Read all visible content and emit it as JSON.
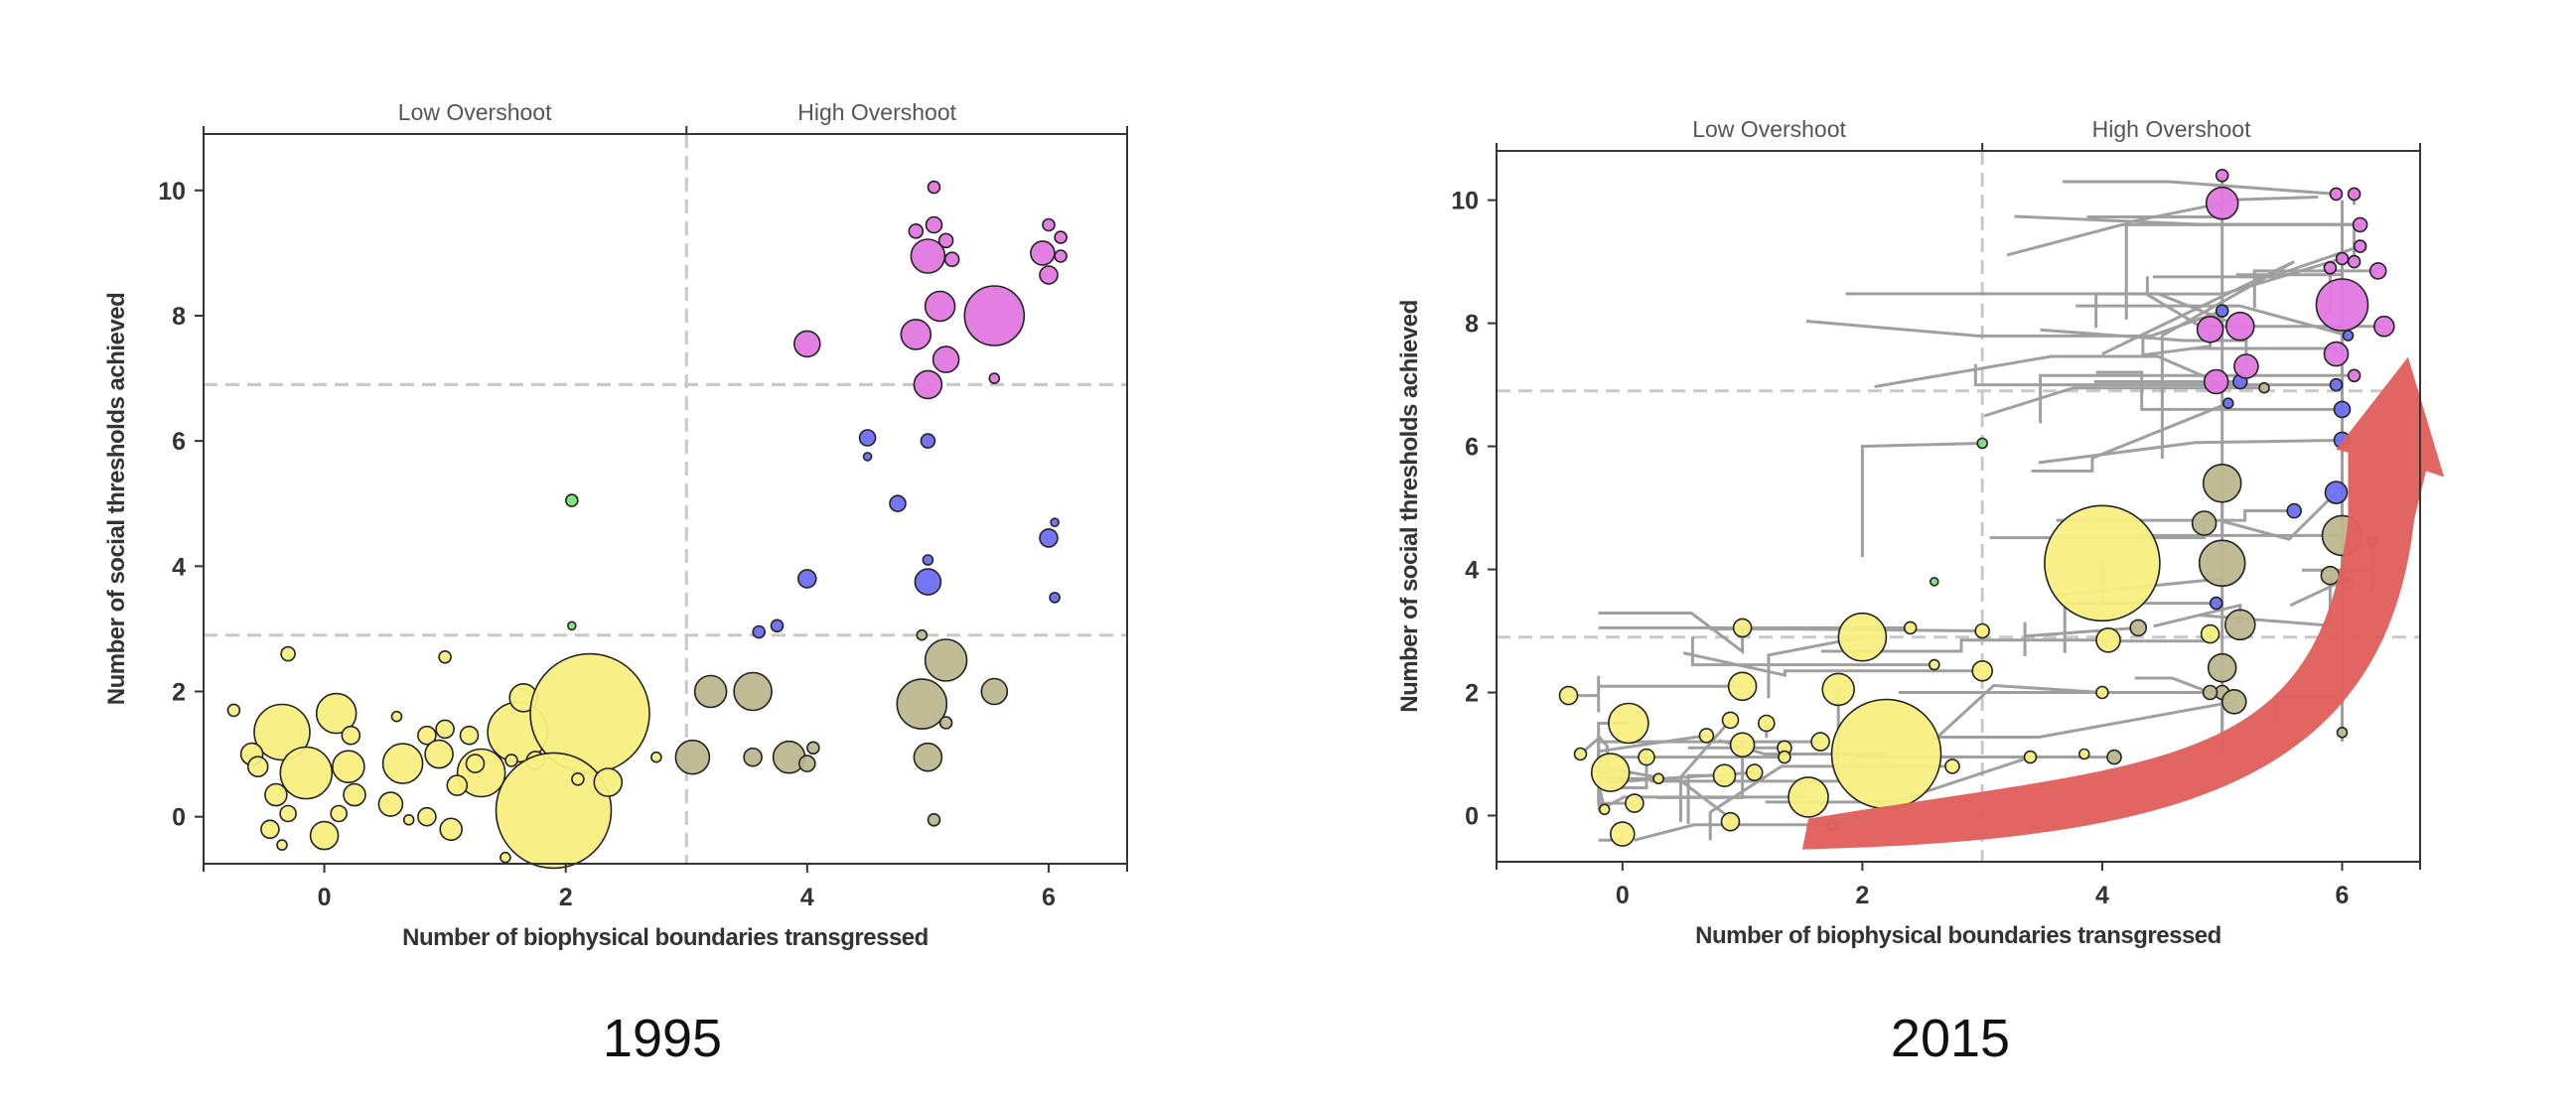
{
  "chart_data": [
    {
      "type": "scatter",
      "year_label": "1995",
      "xlabel": "Number of biophysical boundaries transgressed",
      "ylabel": "Number of social thresholds achieved",
      "region_labels": [
        "Low Overshoot",
        "High Overshoot"
      ],
      "xlim": [
        -1,
        6.65
      ],
      "ylim": [
        -0.75,
        10.9
      ],
      "xticks": [
        0,
        2,
        4,
        6
      ],
      "yticks": [
        0,
        2,
        4,
        6,
        8,
        10
      ],
      "divider_x": 3,
      "divider_y": [
        2.9,
        6.9
      ],
      "grid": false,
      "group_colors": {
        "yellow": "#f8ef80",
        "olive": "#bdb78f",
        "blue": "#6b6ff0",
        "magenta": "#e178e2",
        "green": "#7ae07a"
      },
      "points": [
        [
          -0.75,
          1.7,
          6,
          "yellow"
        ],
        [
          -0.3,
          2.6,
          7,
          "yellow"
        ],
        [
          -0.35,
          1.35,
          28,
          "yellow"
        ],
        [
          0.1,
          1.65,
          20,
          "yellow"
        ],
        [
          -0.6,
          1.0,
          11,
          "yellow"
        ],
        [
          -0.55,
          0.8,
          10,
          "yellow"
        ],
        [
          -0.15,
          0.7,
          26,
          "yellow"
        ],
        [
          0.2,
          0.8,
          16,
          "yellow"
        ],
        [
          0.22,
          1.3,
          9,
          "yellow"
        ],
        [
          0.6,
          1.6,
          5,
          "yellow"
        ],
        [
          -0.4,
          0.35,
          11,
          "yellow"
        ],
        [
          0.25,
          0.35,
          11,
          "yellow"
        ],
        [
          0.55,
          0.2,
          12,
          "yellow"
        ],
        [
          -0.3,
          0.05,
          8,
          "yellow"
        ],
        [
          -0.45,
          -0.2,
          9,
          "yellow"
        ],
        [
          0.0,
          -0.3,
          14,
          "yellow"
        ],
        [
          -0.35,
          -0.45,
          5,
          "yellow"
        ],
        [
          0.12,
          0.05,
          8,
          "yellow"
        ],
        [
          1.0,
          2.55,
          6,
          "yellow"
        ],
        [
          0.85,
          1.3,
          9,
          "yellow"
        ],
        [
          1.0,
          1.4,
          9,
          "yellow"
        ],
        [
          0.95,
          1.0,
          14,
          "yellow"
        ],
        [
          0.65,
          0.85,
          20,
          "yellow"
        ],
        [
          1.2,
          1.3,
          9,
          "yellow"
        ],
        [
          1.3,
          0.7,
          24,
          "yellow"
        ],
        [
          1.6,
          1.35,
          30,
          "yellow"
        ],
        [
          1.65,
          1.9,
          14,
          "yellow"
        ],
        [
          1.75,
          0.9,
          9,
          "yellow"
        ],
        [
          1.55,
          0.9,
          6,
          "yellow"
        ],
        [
          1.25,
          0.85,
          9,
          "yellow"
        ],
        [
          1.1,
          0.5,
          10,
          "yellow"
        ],
        [
          0.85,
          0.0,
          9,
          "yellow"
        ],
        [
          1.05,
          -0.2,
          11,
          "yellow"
        ],
        [
          0.7,
          -0.05,
          5,
          "yellow"
        ],
        [
          1.5,
          -0.65,
          5,
          "yellow"
        ],
        [
          2.2,
          1.65,
          60,
          "yellow"
        ],
        [
          1.9,
          0.1,
          58,
          "yellow"
        ],
        [
          2.35,
          0.55,
          14,
          "yellow"
        ],
        [
          2.1,
          0.6,
          6,
          "yellow"
        ],
        [
          2.75,
          0.95,
          5,
          "yellow"
        ],
        [
          3.05,
          0.95,
          17,
          "olive"
        ],
        [
          3.2,
          2.0,
          16,
          "olive"
        ],
        [
          3.55,
          2.0,
          19,
          "olive"
        ],
        [
          3.55,
          0.95,
          9,
          "olive"
        ],
        [
          3.85,
          0.95,
          16,
          "olive"
        ],
        [
          4.0,
          0.85,
          8,
          "olive"
        ],
        [
          4.05,
          1.1,
          6,
          "olive"
        ],
        [
          4.95,
          1.8,
          25,
          "olive"
        ],
        [
          5.15,
          2.5,
          21,
          "olive"
        ],
        [
          5.0,
          0.95,
          14,
          "olive"
        ],
        [
          5.15,
          1.5,
          6,
          "olive"
        ],
        [
          5.55,
          2.0,
          13,
          "olive"
        ],
        [
          4.95,
          2.9,
          5,
          "olive"
        ],
        [
          5.05,
          -0.05,
          6,
          "olive"
        ],
        [
          3.6,
          2.95,
          6,
          "blue"
        ],
        [
          3.75,
          3.05,
          6,
          "blue"
        ],
        [
          4.0,
          3.8,
          9,
          "blue"
        ],
        [
          4.5,
          6.05,
          8,
          "blue"
        ],
        [
          4.5,
          5.75,
          4,
          "blue"
        ],
        [
          4.75,
          5.0,
          8,
          "blue"
        ],
        [
          5.0,
          6.0,
          7,
          "blue"
        ],
        [
          5.0,
          4.1,
          5,
          "blue"
        ],
        [
          5.0,
          3.75,
          13,
          "blue"
        ],
        [
          6.0,
          4.45,
          9,
          "blue"
        ],
        [
          6.05,
          4.7,
          4,
          "blue"
        ],
        [
          6.05,
          3.5,
          5,
          "blue"
        ],
        [
          4.0,
          7.55,
          13,
          "magenta"
        ],
        [
          4.9,
          9.35,
          7,
          "magenta"
        ],
        [
          5.05,
          9.45,
          8,
          "magenta"
        ],
        [
          5.05,
          10.05,
          6,
          "magenta"
        ],
        [
          5.0,
          8.95,
          17,
          "magenta"
        ],
        [
          5.15,
          9.2,
          7,
          "magenta"
        ],
        [
          5.2,
          8.9,
          7,
          "magenta"
        ],
        [
          5.1,
          8.15,
          15,
          "magenta"
        ],
        [
          4.9,
          7.7,
          15,
          "magenta"
        ],
        [
          5.15,
          7.3,
          13,
          "magenta"
        ],
        [
          5.0,
          6.9,
          14,
          "magenta"
        ],
        [
          5.55,
          8.0,
          30,
          "magenta"
        ],
        [
          5.55,
          7.0,
          5,
          "magenta"
        ],
        [
          6.0,
          9.45,
          6,
          "magenta"
        ],
        [
          5.95,
          9.0,
          12,
          "magenta"
        ],
        [
          6.1,
          9.25,
          6,
          "magenta"
        ],
        [
          6.1,
          8.95,
          6,
          "magenta"
        ],
        [
          6.0,
          8.65,
          9,
          "magenta"
        ],
        [
          2.05,
          5.05,
          6,
          "green"
        ],
        [
          2.05,
          3.05,
          4,
          "green"
        ]
      ]
    },
    {
      "type": "scatter",
      "year_label": "2015",
      "xlabel": "Number of biophysical boundaries transgressed",
      "ylabel": "Number of social thresholds achieved",
      "region_labels": [
        "Low Overshoot",
        "High Overshoot"
      ],
      "xlim": [
        -1.05,
        6.65
      ],
      "ylim": [
        -0.75,
        10.8
      ],
      "xticks": [
        0,
        2,
        4,
        6
      ],
      "yticks": [
        0,
        2,
        4,
        6,
        8,
        10
      ],
      "divider_x": 3,
      "divider_y": [
        2.9,
        6.9
      ],
      "grid": false,
      "trajectories": "grey lines connecting 1995 to 2015 positions",
      "arrow": "red curved arrow indicating upward movement",
      "points": [
        [
          -0.45,
          1.95,
          9,
          "yellow"
        ],
        [
          0.05,
          1.5,
          20,
          "yellow"
        ],
        [
          -0.1,
          0.7,
          19,
          "yellow"
        ],
        [
          0.1,
          0.2,
          9,
          "yellow"
        ],
        [
          0.0,
          -0.3,
          12,
          "yellow"
        ],
        [
          -0.35,
          1.0,
          6,
          "yellow"
        ],
        [
          0.2,
          0.95,
          8,
          "yellow"
        ],
        [
          -0.15,
          0.1,
          5,
          "yellow"
        ],
        [
          0.3,
          0.6,
          5,
          "yellow"
        ],
        [
          1.0,
          3.05,
          9,
          "yellow"
        ],
        [
          1.0,
          2.1,
          14,
          "yellow"
        ],
        [
          0.9,
          1.55,
          8,
          "yellow"
        ],
        [
          1.0,
          1.15,
          12,
          "yellow"
        ],
        [
          0.85,
          0.65,
          11,
          "yellow"
        ],
        [
          1.2,
          1.5,
          8,
          "yellow"
        ],
        [
          1.35,
          1.1,
          7,
          "yellow"
        ],
        [
          0.7,
          1.3,
          7,
          "yellow"
        ],
        [
          1.1,
          0.7,
          8,
          "yellow"
        ],
        [
          0.9,
          -0.1,
          9,
          "yellow"
        ],
        [
          1.55,
          0.3,
          20,
          "yellow"
        ],
        [
          1.65,
          1.2,
          9,
          "yellow"
        ],
        [
          1.8,
          2.05,
          16,
          "yellow"
        ],
        [
          2.0,
          2.9,
          24,
          "yellow"
        ],
        [
          2.2,
          1.0,
          55,
          "yellow"
        ],
        [
          2.4,
          3.05,
          6,
          "yellow"
        ],
        [
          2.6,
          2.45,
          5,
          "yellow"
        ],
        [
          2.75,
          0.8,
          7,
          "yellow"
        ],
        [
          3.0,
          3.0,
          7,
          "yellow"
        ],
        [
          3.0,
          2.35,
          10,
          "yellow"
        ],
        [
          1.75,
          -0.15,
          5,
          "yellow"
        ],
        [
          1.35,
          0.95,
          6,
          "yellow"
        ],
        [
          4.0,
          4.1,
          58,
          "yellow"
        ],
        [
          4.05,
          2.85,
          12,
          "yellow"
        ],
        [
          4.0,
          2.0,
          6,
          "yellow"
        ],
        [
          3.85,
          1.0,
          5,
          "yellow"
        ],
        [
          3.4,
          0.95,
          6,
          "yellow"
        ],
        [
          4.9,
          2.95,
          9,
          "yellow"
        ],
        [
          4.1,
          0.95,
          7,
          "olive"
        ],
        [
          4.3,
          3.05,
          8,
          "olive"
        ],
        [
          5.0,
          5.4,
          19,
          "olive"
        ],
        [
          4.85,
          4.75,
          12,
          "olive"
        ],
        [
          5.0,
          4.1,
          23,
          "olive"
        ],
        [
          5.15,
          3.1,
          15,
          "olive"
        ],
        [
          5.0,
          2.4,
          14,
          "olive"
        ],
        [
          5.0,
          2.0,
          7,
          "olive"
        ],
        [
          5.1,
          1.85,
          12,
          "olive"
        ],
        [
          4.9,
          2.0,
          7,
          "olive"
        ],
        [
          6.0,
          4.55,
          20,
          "olive"
        ],
        [
          5.9,
          3.9,
          9,
          "olive"
        ],
        [
          6.05,
          3.75,
          5,
          "olive"
        ],
        [
          6.0,
          1.35,
          5,
          "olive"
        ],
        [
          5.35,
          6.95,
          5,
          "olive"
        ],
        [
          5.0,
          8.2,
          6,
          "blue"
        ],
        [
          5.05,
          6.7,
          5,
          "blue"
        ],
        [
          5.15,
          7.05,
          7,
          "blue"
        ],
        [
          4.95,
          3.45,
          6,
          "blue"
        ],
        [
          5.6,
          4.95,
          7,
          "blue"
        ],
        [
          5.95,
          5.25,
          11,
          "blue"
        ],
        [
          6.0,
          6.1,
          8,
          "blue"
        ],
        [
          6.0,
          6.6,
          8,
          "blue"
        ],
        [
          5.95,
          7.0,
          6,
          "blue"
        ],
        [
          6.25,
          4.45,
          5,
          "blue"
        ],
        [
          6.05,
          7.8,
          5,
          "blue"
        ],
        [
          5.0,
          10.4,
          6,
          "magenta"
        ],
        [
          5.0,
          9.95,
          16,
          "magenta"
        ],
        [
          4.9,
          7.9,
          13,
          "magenta"
        ],
        [
          5.15,
          7.95,
          14,
          "magenta"
        ],
        [
          5.2,
          7.3,
          12,
          "magenta"
        ],
        [
          4.95,
          7.05,
          12,
          "magenta"
        ],
        [
          5.95,
          10.1,
          6,
          "magenta"
        ],
        [
          6.1,
          10.1,
          6,
          "magenta"
        ],
        [
          6.15,
          9.6,
          7,
          "magenta"
        ],
        [
          6.15,
          9.25,
          6,
          "magenta"
        ],
        [
          6.0,
          9.05,
          6,
          "magenta"
        ],
        [
          5.9,
          8.9,
          6,
          "magenta"
        ],
        [
          6.1,
          9.0,
          6,
          "magenta"
        ],
        [
          6.3,
          8.85,
          8,
          "magenta"
        ],
        [
          6.0,
          8.3,
          26,
          "magenta"
        ],
        [
          5.95,
          7.5,
          12,
          "magenta"
        ],
        [
          6.1,
          7.15,
          6,
          "magenta"
        ],
        [
          6.35,
          7.95,
          10,
          "magenta"
        ],
        [
          3.0,
          6.05,
          5,
          "green"
        ],
        [
          2.6,
          3.8,
          4,
          "green"
        ]
      ]
    }
  ]
}
